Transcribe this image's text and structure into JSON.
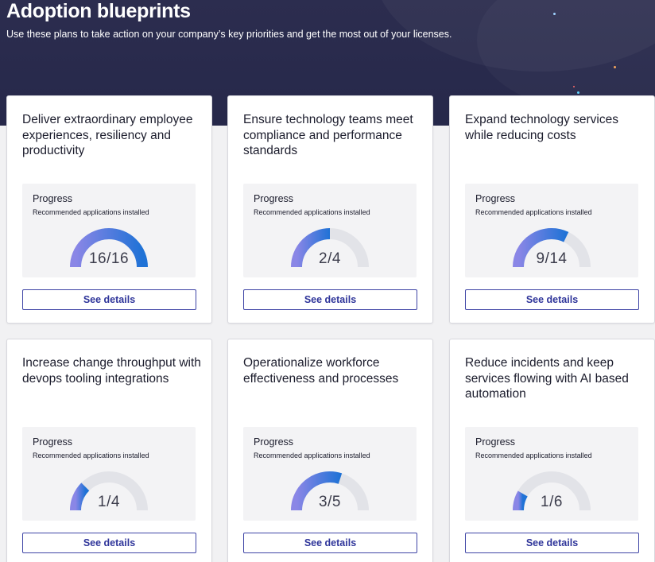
{
  "header": {
    "title": "Adoption blueprints",
    "subtitle": "Use these plans to take action on your company’s key priorities and get the most out of your licenses."
  },
  "colors": {
    "banner": "#2b2c4e",
    "gauge_track": "#e2e3e8",
    "gauge_start": "#8a86e6",
    "gauge_end": "#1f72d6",
    "button_text": "#2f359a"
  },
  "cards": [
    {
      "title": "Deliver extraordinary employee experiences, resiliency and productivity",
      "progress_label": "Progress",
      "progress_sub": "Recommended applications installed",
      "installed": 16,
      "total": 16,
      "value_text": "16/16",
      "button": "See details"
    },
    {
      "title": "Ensure technology teams meet compliance and performance standards",
      "progress_label": "Progress",
      "progress_sub": "Recommended applications installed",
      "installed": 2,
      "total": 4,
      "value_text": "2/4",
      "button": "See details"
    },
    {
      "title": "Expand technology services while reducing costs",
      "progress_label": "Progress",
      "progress_sub": "Recommended applications installed",
      "installed": 9,
      "total": 14,
      "value_text": "9/14",
      "button": "See details"
    },
    {
      "title": "Increase change throughput with devops tooling integrations",
      "progress_label": "Progress",
      "progress_sub": "Recommended applications installed",
      "installed": 1,
      "total": 4,
      "value_text": "1/4",
      "button": "See details"
    },
    {
      "title": "Operationalize workforce effectiveness and processes",
      "progress_label": "Progress",
      "progress_sub": "Recommended applications installed",
      "installed": 3,
      "total": 5,
      "value_text": "3/5",
      "button": "See details"
    },
    {
      "title": "Reduce incidents and keep services flowing with AI based automation",
      "progress_label": "Progress",
      "progress_sub": "Recommended applications installed",
      "installed": 1,
      "total": 6,
      "value_text": "1/6",
      "button": "See details"
    }
  ]
}
